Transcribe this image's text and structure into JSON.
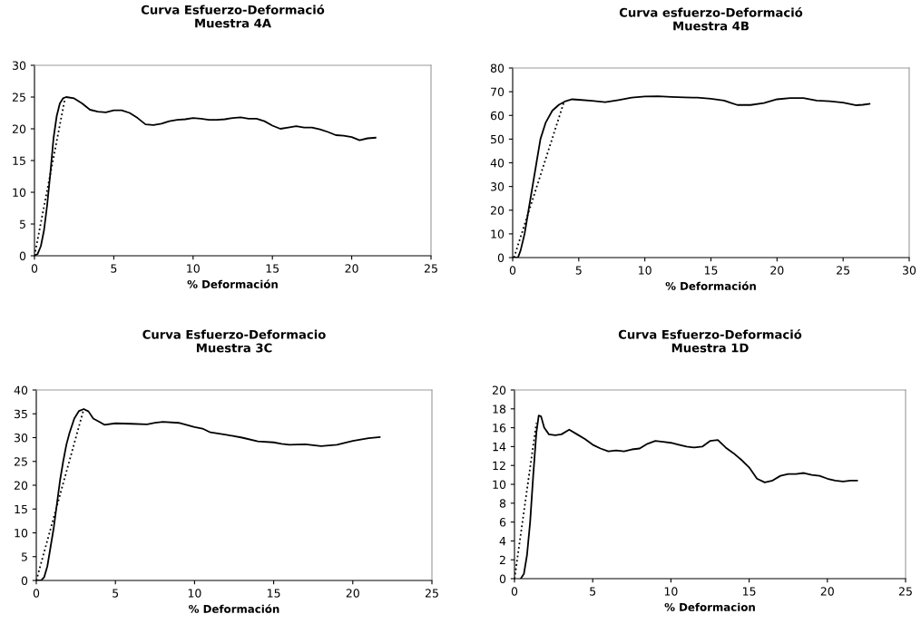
{
  "chart_data": [
    {
      "type": "line",
      "title": "Curva Esfuerzo-Deformació\nMuestra 4A",
      "xlabel": "% Deformación",
      "xlim": [
        0,
        25
      ],
      "ylim": [
        0,
        30
      ],
      "xticks": [
        0,
        5,
        10,
        15,
        20,
        25
      ],
      "yticks": [
        0,
        5,
        10,
        15,
        20,
        25,
        30
      ],
      "grid": false,
      "series": [
        {
          "color": "#000000",
          "line_style": "solid",
          "x": [
            0,
            0.2,
            0.4,
            0.6,
            0.8,
            1.0,
            1.2,
            1.4,
            1.6,
            1.8,
            2.0,
            2.5,
            3,
            3.5,
            4,
            4.5,
            5,
            5.5,
            6,
            6.5,
            7,
            7.5,
            8,
            8.5,
            9,
            9.5,
            10,
            10.5,
            11,
            11.5,
            12,
            12.5,
            13,
            13.5,
            14,
            14.5,
            15,
            15.5,
            16,
            16.5,
            17,
            17.5,
            18,
            18.5,
            19,
            19.5,
            20,
            20.5,
            21,
            21.5
          ],
          "values": [
            0,
            0.3,
            1.5,
            4,
            8,
            13,
            18.5,
            22,
            24,
            24.8,
            25,
            24.8,
            24,
            23,
            22.7,
            22.6,
            22.9,
            22.9,
            22.5,
            21.7,
            20.7,
            20.6,
            20.8,
            21.2,
            21.4,
            21.5,
            21.7,
            21.6,
            21.4,
            21.4,
            21.5,
            21.7,
            21.8,
            21.6,
            21.6,
            21.2,
            20.5,
            20,
            20.2,
            20.4,
            20.2,
            20.2,
            19.9,
            19.5,
            19,
            18.9,
            18.7,
            18.2,
            18.5,
            18.6
          ]
        },
        {
          "color": "#000000",
          "line_style": "dotted",
          "x": [
            0,
            1.9
          ],
          "values": [
            0,
            24.5
          ]
        }
      ]
    },
    {
      "type": "line",
      "title": "Curva esfuerzo-Deformació\nMuestra 4B",
      "xlabel": "% Deformación",
      "xlim": [
        0,
        30
      ],
      "ylim": [
        0,
        80
      ],
      "xticks": [
        0,
        5,
        10,
        15,
        20,
        25,
        30
      ],
      "yticks": [
        0,
        10,
        20,
        30,
        40,
        50,
        60,
        70,
        80
      ],
      "grid": false,
      "series": [
        {
          "color": "#000000",
          "line_style": "solid",
          "x": [
            0,
            0.4,
            0.6,
            0.9,
            1.2,
            1.5,
            1.8,
            2.1,
            2.5,
            3,
            3.5,
            4,
            4.5,
            5,
            6,
            7,
            8,
            9,
            10,
            11,
            12,
            13,
            14,
            15,
            16,
            16.5,
            17,
            18,
            19,
            20,
            21,
            22,
            23,
            24,
            25,
            26,
            26.5,
            27
          ],
          "values": [
            0,
            0,
            3,
            10,
            20,
            30,
            40,
            50,
            57,
            62,
            64.5,
            66,
            66.8,
            66.6,
            66.2,
            65.6,
            66.5,
            67.5,
            68,
            68.1,
            67.8,
            67.6,
            67.5,
            67,
            66.3,
            65.3,
            64.4,
            64.4,
            65.2,
            66.8,
            67.3,
            67.3,
            66.3,
            66,
            65.4,
            64.3,
            64.5,
            64.9
          ]
        },
        {
          "color": "#000000",
          "line_style": "dotted",
          "x": [
            0.1,
            3.9
          ],
          "values": [
            0,
            66
          ]
        }
      ]
    },
    {
      "type": "line",
      "title": "Curva Esfuerzo-Deformacio\nMuestra 3C",
      "xlabel": "% Deformación",
      "xlim": [
        0,
        25
      ],
      "ylim": [
        0,
        40
      ],
      "xticks": [
        0,
        5,
        10,
        15,
        20,
        25
      ],
      "yticks": [
        0,
        5,
        10,
        15,
        20,
        25,
        30,
        35,
        40
      ],
      "grid": false,
      "series": [
        {
          "color": "#000000",
          "line_style": "solid",
          "x": [
            0,
            0.3,
            0.5,
            0.7,
            0.9,
            1.1,
            1.3,
            1.5,
            1.7,
            1.9,
            2.1,
            2.4,
            2.7,
            3.0,
            3.3,
            3.6,
            4,
            4.3,
            5,
            6,
            7,
            7.5,
            8,
            9,
            10,
            10.5,
            11,
            12,
            13,
            14,
            15,
            15.5,
            16,
            17,
            18,
            19,
            20,
            21,
            21.7
          ],
          "values": [
            0,
            0,
            0.7,
            3,
            7,
            11,
            16,
            21,
            25,
            28.5,
            31,
            34,
            35.6,
            36,
            35.5,
            34,
            33.3,
            32.7,
            33,
            32.9,
            32.8,
            33.1,
            33.3,
            33.1,
            32.2,
            31.9,
            31.1,
            30.6,
            30,
            29.2,
            29,
            28.7,
            28.5,
            28.6,
            28.2,
            28.5,
            29.3,
            29.9,
            30.1
          ]
        },
        {
          "color": "#000000",
          "line_style": "dotted",
          "x": [
            0,
            3
          ],
          "values": [
            0,
            36
          ]
        }
      ]
    },
    {
      "type": "line",
      "title": "Curva Esfuerzo-Deformació\nMuestra 1D",
      "xlabel": "% Deformacion",
      "xlim": [
        0,
        25
      ],
      "ylim": [
        0,
        20
      ],
      "xticks": [
        0,
        5,
        10,
        15,
        20,
        25
      ],
      "yticks": [
        0,
        2,
        4,
        6,
        8,
        10,
        12,
        14,
        16,
        18,
        20
      ],
      "grid": false,
      "series": [
        {
          "color": "#000000",
          "line_style": "solid",
          "x": [
            0.4,
            0.6,
            0.8,
            1.0,
            1.2,
            1.4,
            1.55,
            1.7,
            1.9,
            2.2,
            2.6,
            3,
            3.5,
            4,
            4.5,
            5,
            5.5,
            6,
            6.5,
            7,
            7.5,
            8,
            8.5,
            9,
            9.5,
            10,
            10.5,
            11,
            11.5,
            12,
            12.5,
            13,
            13.5,
            14,
            14.5,
            15,
            15.5,
            16,
            16.5,
            17,
            17.5,
            18,
            18.5,
            19,
            19.5,
            20,
            20.5,
            21,
            21.5,
            21.9
          ],
          "values": [
            0,
            0.5,
            2.5,
            6,
            11,
            15.5,
            17.3,
            17.2,
            16,
            15.3,
            15.2,
            15.3,
            15.8,
            15.3,
            14.8,
            14.2,
            13.8,
            13.5,
            13.6,
            13.5,
            13.7,
            13.8,
            14.3,
            14.6,
            14.5,
            14.4,
            14.2,
            14,
            13.9,
            14,
            14.6,
            14.7,
            13.9,
            13.3,
            12.6,
            11.8,
            10.6,
            10.2,
            10.4,
            10.9,
            11.1,
            11.1,
            11.2,
            11,
            10.9,
            10.6,
            10.4,
            10.3,
            10.4,
            10.4
          ]
        },
        {
          "color": "#000000",
          "line_style": "dotted",
          "x": [
            0,
            1.4
          ],
          "values": [
            0,
            16.5
          ]
        }
      ]
    }
  ]
}
